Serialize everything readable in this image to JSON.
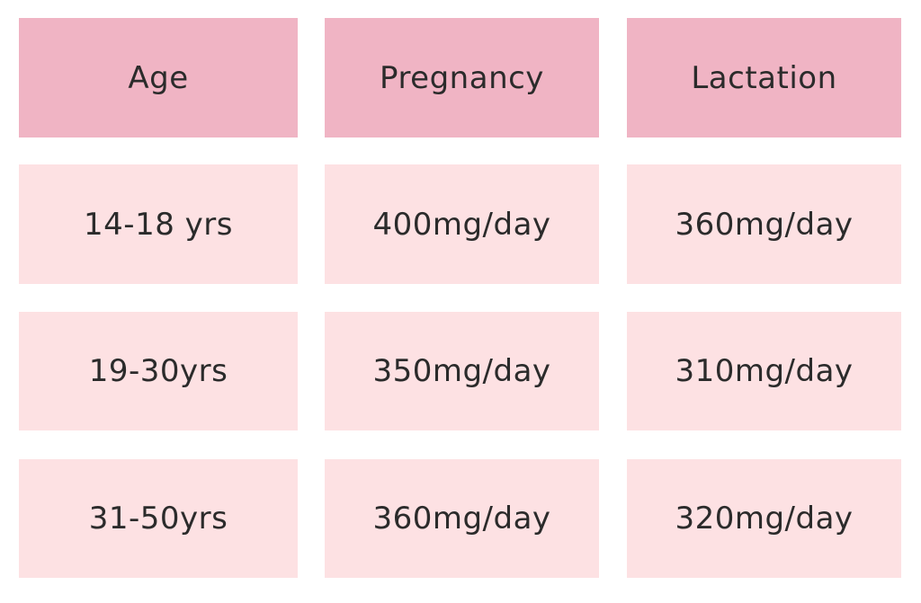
{
  "table": {
    "headers": [
      "Age",
      "Pregnancy",
      "Lactation"
    ],
    "rows": [
      [
        "14-18 yrs",
        "400mg/day",
        "360mg/day"
      ],
      [
        "19-30yrs",
        "350mg/day",
        "310mg/day"
      ],
      [
        "31-50yrs",
        "360mg/day",
        "320mg/day"
      ]
    ]
  },
  "colors": {
    "header_bg": "#f0b4c4",
    "cell_bg": "#fde1e3",
    "text": "#2b2b2b"
  }
}
